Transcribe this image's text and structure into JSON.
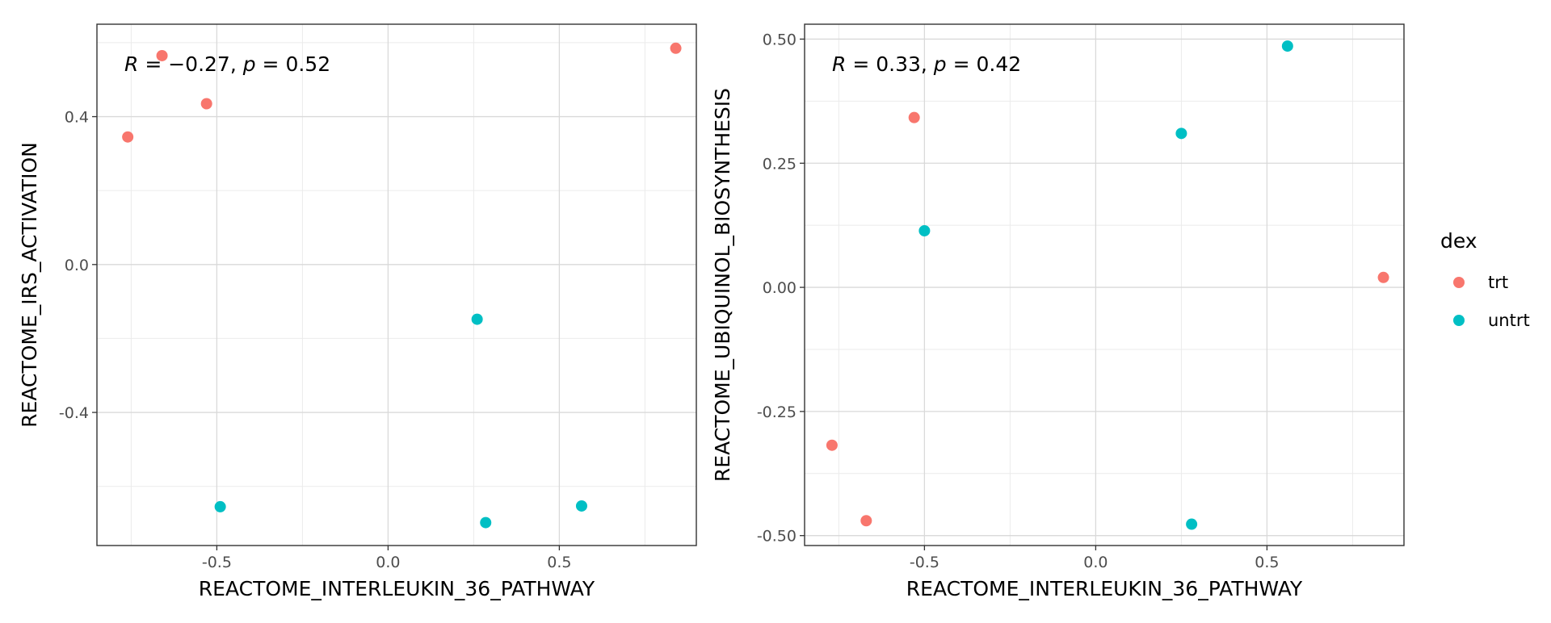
{
  "chart_data": [
    {
      "type": "scatter",
      "xlabel": "REACTOME_INTERLEUKIN_36_PATHWAY",
      "ylabel": "REACTOME_IRS_ACTIVATION",
      "annotation": {
        "r_label": "R",
        "r_value": " = −0.27, ",
        "p_label": "p",
        "p_value": " = 0.52"
      },
      "xlim": [
        -0.85,
        0.9
      ],
      "ylim": [
        -0.76,
        0.65
      ],
      "x_ticks": [
        -0.5,
        0.0,
        0.5
      ],
      "x_tick_labels": [
        "-0.5",
        "0.0",
        "0.5"
      ],
      "y_ticks": [
        -0.4,
        0.0,
        0.4
      ],
      "y_tick_labels": [
        "-0.4",
        "0.0",
        "0.4"
      ],
      "grid": true,
      "series": [
        {
          "name": "trt",
          "color": "#F8766D",
          "x": [
            -0.76,
            -0.66,
            -0.53,
            0.84
          ],
          "y": [
            0.345,
            0.565,
            0.435,
            0.585
          ]
        },
        {
          "name": "untrt",
          "color": "#00BFC4",
          "x": [
            0.26,
            -0.49,
            0.285,
            0.565
          ],
          "y": [
            -0.148,
            -0.655,
            -0.698,
            -0.653
          ]
        }
      ]
    },
    {
      "type": "scatter",
      "xlabel": "REACTOME_INTERLEUKIN_36_PATHWAY",
      "ylabel": "REACTOME_UBIQUINOL_BIOSYNTHESIS",
      "annotation": {
        "r_label": "R",
        "r_value": " = 0.33, ",
        "p_label": "p",
        "p_value": " = 0.42"
      },
      "xlim": [
        -0.85,
        0.9
      ],
      "ylim": [
        -0.52,
        0.53
      ],
      "x_ticks": [
        -0.5,
        0.0,
        0.5
      ],
      "x_tick_labels": [
        "-0.5",
        "0.0",
        "0.5"
      ],
      "y_ticks": [
        -0.5,
        -0.25,
        0.0,
        0.25,
        0.5
      ],
      "y_tick_labels": [
        "-0.50",
        "-0.25",
        "0.00",
        "0.25",
        "0.50"
      ],
      "grid": true,
      "series": [
        {
          "name": "trt",
          "color": "#F8766D",
          "x": [
            -0.53,
            -0.77,
            -0.67,
            0.84
          ],
          "y": [
            0.342,
            -0.318,
            -0.47,
            0.02
          ]
        },
        {
          "name": "untrt",
          "color": "#00BFC4",
          "x": [
            0.25,
            -0.5,
            0.56,
            0.28
          ],
          "y": [
            0.31,
            0.114,
            0.486,
            -0.477
          ]
        }
      ]
    }
  ],
  "legend": {
    "title": "dex",
    "position": "right",
    "entries": [
      {
        "label": "trt",
        "color": "#F8766D"
      },
      {
        "label": "untrt",
        "color": "#00BFC4"
      }
    ]
  }
}
